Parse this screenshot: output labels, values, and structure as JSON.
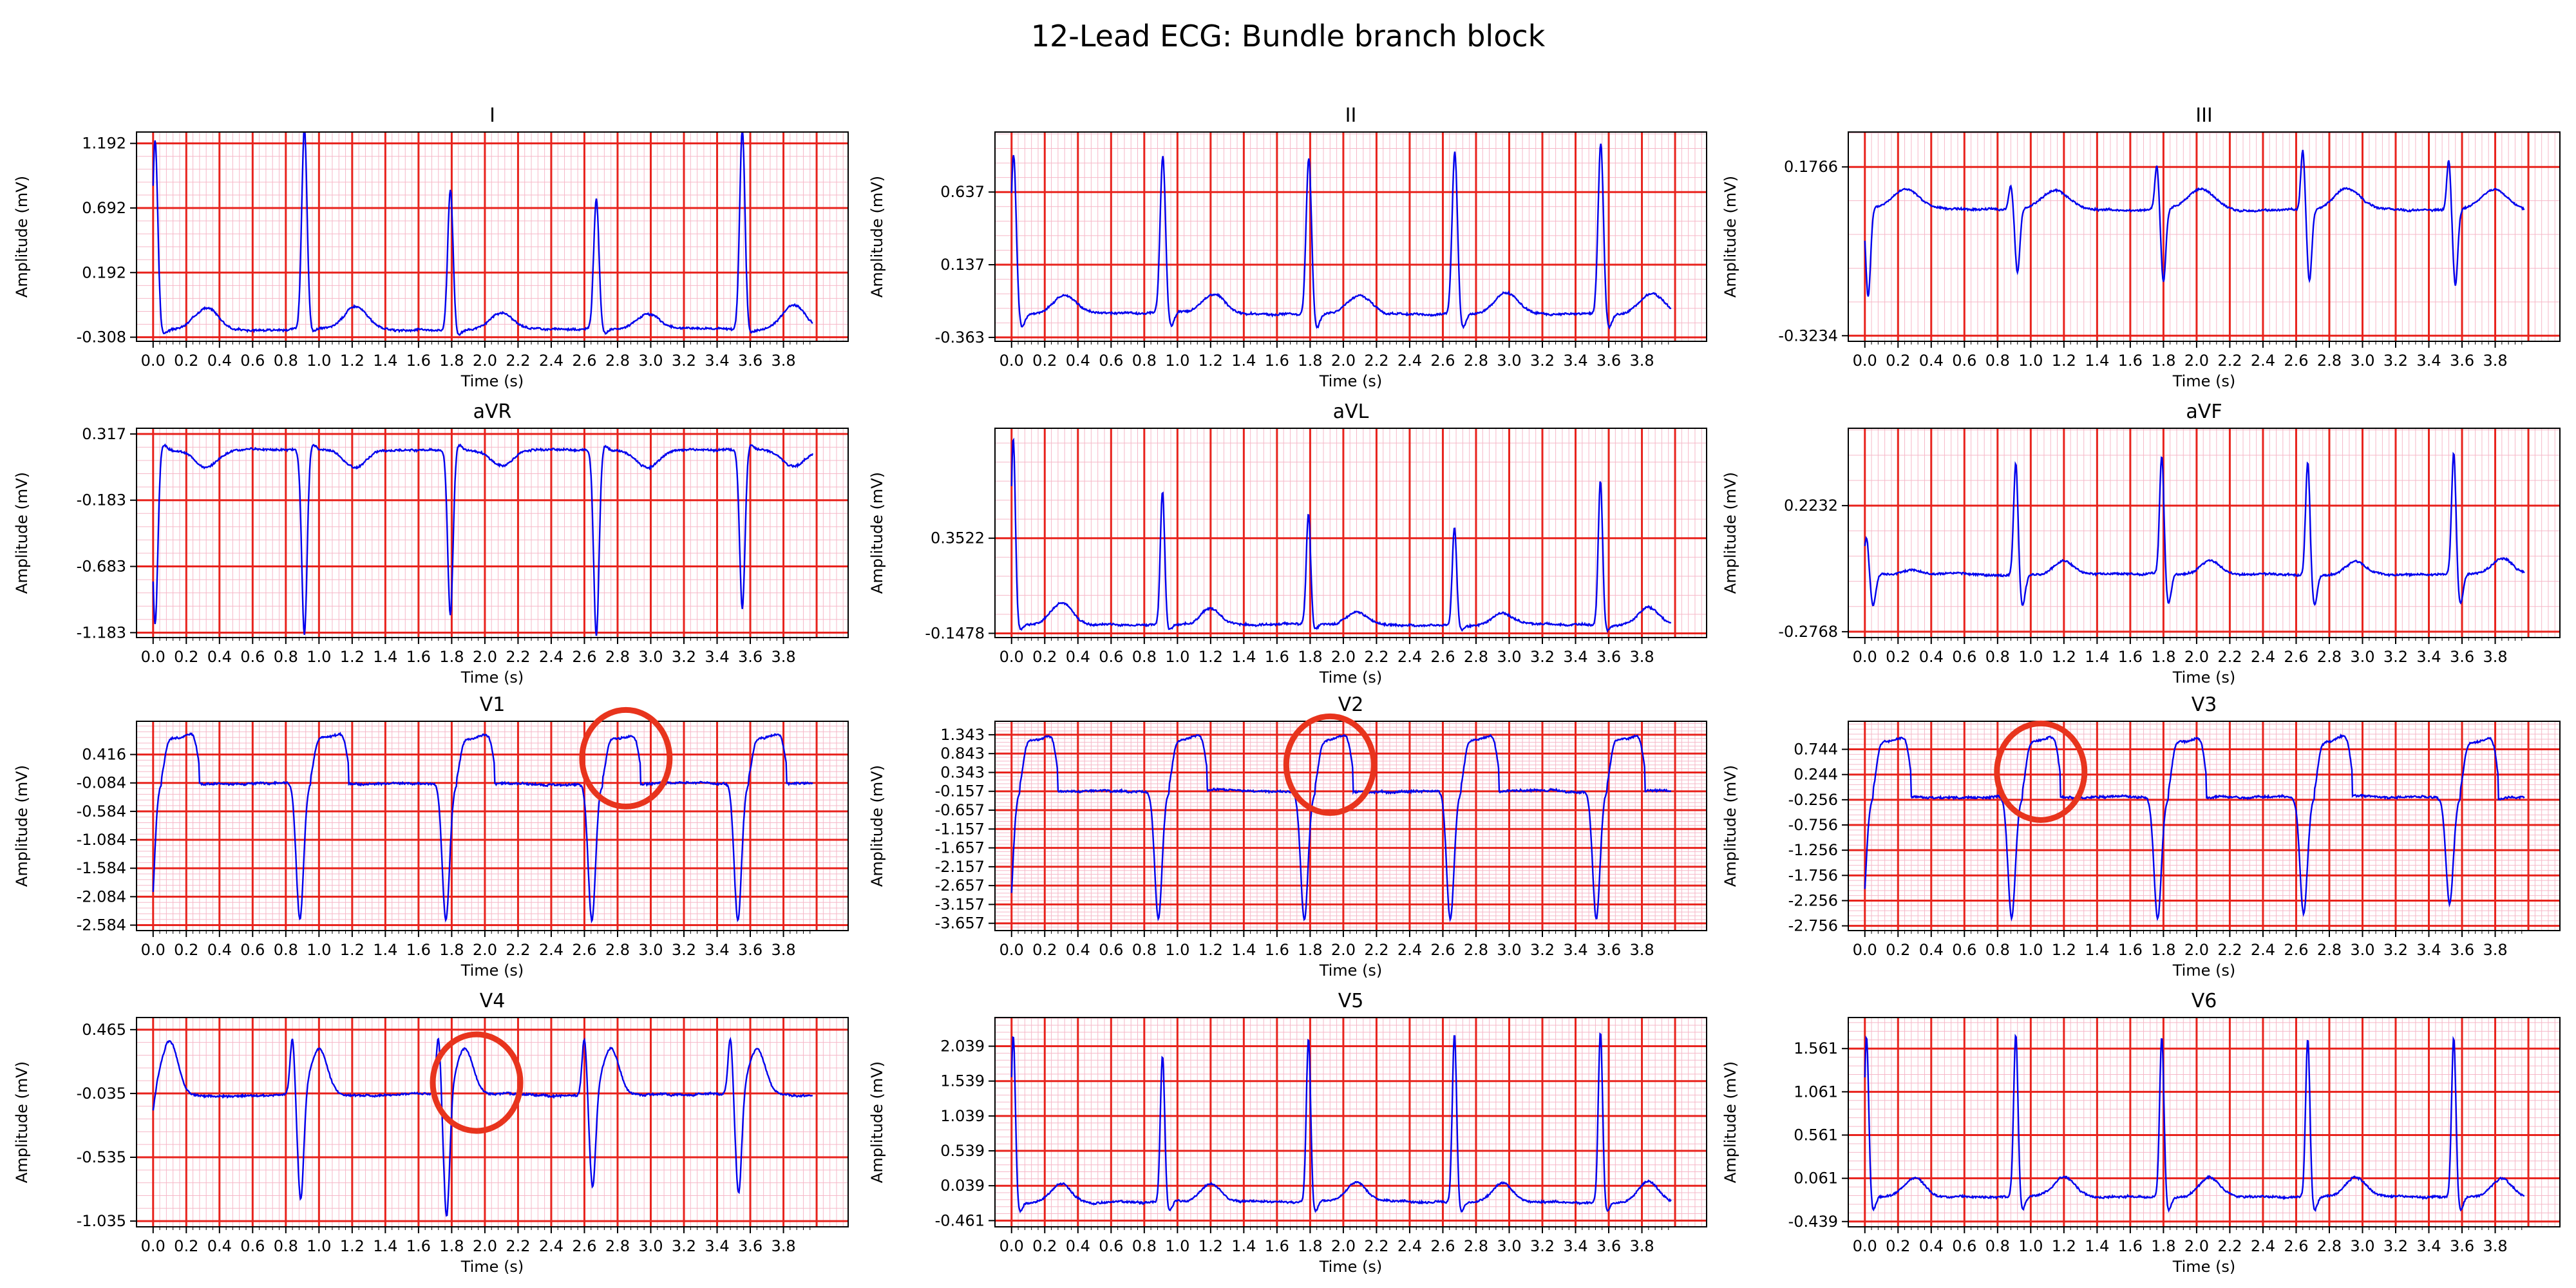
{
  "figure": {
    "title": "12-Lead ECG: Bundle branch block"
  },
  "colors": {
    "trace": "#0000ee",
    "major_grid": "#e8231d",
    "minor_grid": "#f6b8c8",
    "annotation": "#e8341d"
  },
  "chart_data": {
    "type": "line",
    "signal": "ECG",
    "x_ticks": [
      "0.0",
      "0.2",
      "0.4",
      "0.6",
      "0.8",
      "1.0",
      "1.2",
      "1.4",
      "1.6",
      "1.8",
      "2.0",
      "2.2",
      "2.4",
      "2.6",
      "2.8",
      "3.0",
      "3.2",
      "3.4",
      "3.6",
      "3.8"
    ],
    "xlabel": "Time (s)",
    "ylabel": "Amplitude (mV)",
    "xlim": [
      -0.1,
      4.19
    ],
    "grid": true,
    "beat_times": [
      0.0,
      0.9,
      1.78,
      2.66,
      3.54
    ],
    "panels": [
      {
        "lead": "I",
        "ylim": [
          -0.34,
          1.28
        ],
        "y_ticks": [
          "-0.308",
          "0.192",
          "0.692",
          "1.192"
        ],
        "tick_values": [
          -0.308,
          0.192,
          0.692,
          1.192
        ],
        "baseline": -0.25,
        "peaks": [
          1.22,
          1.3,
          0.85,
          0.76,
          1.3
        ],
        "troughs": [
          -0.3,
          -0.3,
          -0.3,
          -0.3,
          -0.3
        ],
        "wave": "wide-qrs-positive",
        "annotation_circle": null
      },
      {
        "lead": "II",
        "ylim": [
          -0.39,
          1.05
        ],
        "y_ticks": [
          "-0.363",
          "0.137",
          "0.637"
        ],
        "tick_values": [
          -0.363,
          0.137,
          0.637
        ],
        "baseline": -0.2,
        "peaks": [
          0.9,
          0.88,
          0.88,
          0.92,
          0.98
        ],
        "troughs": [
          -0.36,
          -0.36,
          -0.36,
          -0.36,
          -0.36
        ],
        "wave": "wide-qrs-positive",
        "annotation_circle": null
      },
      {
        "lead": "III",
        "ylim": [
          -0.34,
          0.28
        ],
        "y_ticks": [
          "-0.3234",
          "0.1766"
        ],
        "tick_values": [
          -0.3234,
          0.1766
        ],
        "baseline": 0.05,
        "peaks": [
          0.05,
          0.12,
          0.18,
          0.23,
          0.2
        ],
        "troughs": [
          -0.32,
          -0.22,
          -0.26,
          -0.25,
          -0.27
        ],
        "wave": "low-amplitude",
        "annotation_circle": null
      },
      {
        "lead": "aVR",
        "ylim": [
          -1.22,
          0.36
        ],
        "y_ticks": [
          "-1.183",
          "-0.683",
          "-0.183",
          "0.317"
        ],
        "tick_values": [
          -1.183,
          -0.683,
          -0.183,
          0.317
        ],
        "baseline": 0.2,
        "peaks": [
          0.3,
          0.3,
          0.3,
          0.3,
          0.3
        ],
        "troughs": [
          -1.12,
          -1.2,
          -1.05,
          -1.2,
          -1.0
        ],
        "wave": "inverted-qrs",
        "annotation_circle": null
      },
      {
        "lead": "aVL",
        "ylim": [
          -0.17,
          0.93
        ],
        "y_ticks": [
          "-0.1478",
          "0.3522"
        ],
        "tick_values": [
          -0.1478,
          0.3522
        ],
        "baseline": -0.1,
        "peaks": [
          0.88,
          0.6,
          0.48,
          0.42,
          0.66
        ],
        "troughs": [
          -0.15,
          -0.15,
          -0.15,
          -0.15,
          -0.15
        ],
        "wave": "qrs-positive",
        "annotation_circle": null
      },
      {
        "lead": "aVF",
        "ylim": [
          -0.3,
          0.53
        ],
        "y_ticks": [
          "-0.2768",
          "0.2232"
        ],
        "tick_values": [
          -0.2768,
          0.2232
        ],
        "baseline": -0.05,
        "peaks": [
          0.1,
          0.4,
          0.42,
          0.4,
          0.44
        ],
        "troughs": [
          -0.27,
          -0.27,
          -0.27,
          -0.27,
          -0.27
        ],
        "wave": "qrs-positive",
        "annotation_circle": null
      },
      {
        "lead": "V1",
        "ylim": [
          -2.68,
          1.0
        ],
        "y_ticks": [
          "-2.584",
          "-2.084",
          "-1.584",
          "-1.084",
          "-0.584",
          "-0.084",
          "0.416"
        ],
        "tick_values": [
          -2.584,
          -2.084,
          -1.584,
          -1.084,
          -0.584,
          -0.084,
          0.416
        ],
        "baseline": -0.1,
        "peaks": [
          0.85,
          0.85,
          0.85,
          0.85,
          0.85
        ],
        "troughs": [
          -2.5,
          -2.5,
          -2.5,
          -2.5,
          -2.5
        ],
        "wave": "deep-qs-plateau",
        "annotation_circle": {
          "time": 2.85,
          "value": 0.35
        }
      },
      {
        "lead": "V2",
        "ylim": [
          -3.85,
          1.7
        ],
        "y_ticks": [
          "-3.657",
          "-3.157",
          "-2.657",
          "-2.157",
          "-1.657",
          "-1.157",
          "-0.657",
          "-0.157",
          "0.343",
          "0.843",
          "1.343"
        ],
        "tick_values": [
          -3.657,
          -3.157,
          -2.657,
          -2.157,
          -1.657,
          -1.157,
          -0.657,
          -0.157,
          0.343,
          0.843,
          1.343
        ],
        "baseline": -0.15,
        "peaks": [
          1.45,
          1.45,
          1.45,
          1.45,
          1.45
        ],
        "troughs": [
          -3.55,
          -3.55,
          -3.55,
          -3.55,
          -3.55
        ],
        "wave": "deep-qs-plateau",
        "annotation_circle": {
          "time": 1.92,
          "value": 0.55
        }
      },
      {
        "lead": "V3",
        "ylim": [
          -2.85,
          1.3
        ],
        "y_ticks": [
          "-2.756",
          "-2.256",
          "-1.756",
          "-1.256",
          "-0.756",
          "-0.256",
          "0.244",
          "0.744"
        ],
        "tick_values": [
          -2.756,
          -2.256,
          -1.756,
          -1.256,
          -0.756,
          -0.256,
          0.244,
          0.744
        ],
        "baseline": -0.2,
        "peaks": [
          1.1,
          1.1,
          1.1,
          1.1,
          1.1
        ],
        "troughs": [
          -2.5,
          -2.6,
          -2.6,
          -2.5,
          -2.3
        ],
        "wave": "deep-qs-plateau",
        "annotation_circle": {
          "time": 1.06,
          "value": 0.3
        }
      },
      {
        "lead": "V4",
        "ylim": [
          -1.08,
          0.56
        ],
        "y_ticks": [
          "-1.035",
          "-0.535",
          "-0.035",
          "0.465"
        ],
        "tick_values": [
          -1.035,
          -0.535,
          -0.035,
          0.465
        ],
        "baseline": -0.05,
        "peaks": [
          0.48,
          0.4,
          0.4,
          0.4,
          0.4
        ],
        "troughs": [
          -0.25,
          -0.9,
          -1.03,
          -0.8,
          -0.85
        ],
        "wave": "biphasic",
        "annotation_circle": {
          "time": 1.95,
          "value": 0.05
        }
      },
      {
        "lead": "V5",
        "ylim": [
          -0.55,
          2.45
        ],
        "y_ticks": [
          "-0.461",
          "0.039",
          "0.539",
          "1.039",
          "1.539",
          "2.039"
        ],
        "tick_values": [
          -0.461,
          0.039,
          0.539,
          1.039,
          1.539,
          2.039
        ],
        "baseline": -0.2,
        "peaks": [
          2.2,
          1.9,
          2.15,
          2.2,
          2.25
        ],
        "troughs": [
          -0.46,
          -0.46,
          -0.46,
          -0.46,
          -0.46
        ],
        "wave": "qrs-positive",
        "annotation_circle": null
      },
      {
        "lead": "V6",
        "ylim": [
          -0.5,
          1.92
        ],
        "y_ticks": [
          "-0.439",
          "0.061",
          "0.561",
          "1.061",
          "1.561"
        ],
        "tick_values": [
          -0.439,
          0.061,
          0.561,
          1.061,
          1.561
        ],
        "baseline": -0.15,
        "peaks": [
          1.7,
          1.72,
          1.7,
          1.68,
          1.7
        ],
        "troughs": [
          -0.44,
          -0.44,
          -0.44,
          -0.44,
          -0.44
        ],
        "wave": "qrs-positive",
        "annotation_circle": null
      }
    ]
  }
}
